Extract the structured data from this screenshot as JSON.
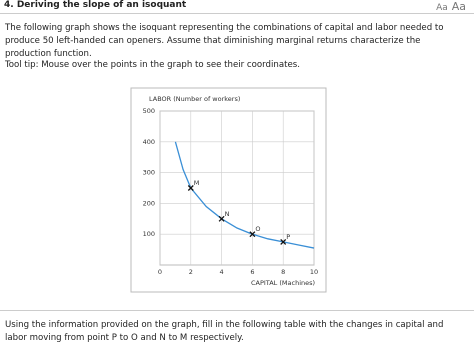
{
  "header": {
    "title": "4. Deriving the slope of an isoquant",
    "font_controls": [
      "Aa",
      "Aa"
    ]
  },
  "intro": "The following graph shows the isoquant representing the combinations of capital and labor needed to produce 50 left-handed can openers. Assume that diminishing marginal returns characterize the production function.",
  "tooltip": "Tool tip: Mouse over the points in the graph to see their coordinates.",
  "question": "Using the information provided on the graph, fill in the following table with the changes in capital and labor moving from point P to O and N to M respectively.",
  "chart_data": {
    "type": "line",
    "y_label": "LABOR (Number of workers)",
    "x_label": "CAPITAL (Machines)",
    "xlim": [
      0,
      10
    ],
    "ylim": [
      0,
      500
    ],
    "xticks": [
      0,
      2,
      4,
      6,
      8,
      10
    ],
    "yticks": [
      100,
      200,
      300,
      400,
      500
    ],
    "grid": true,
    "series": [
      {
        "color": "#3a8fd6",
        "x": [
          1,
          1.5,
          2,
          3,
          4,
          5,
          6,
          7,
          8,
          9,
          10
        ],
        "values": [
          400,
          310,
          250,
          190,
          150,
          120,
          100,
          85,
          75,
          65,
          55
        ]
      }
    ],
    "points": {
      "labels": [
        "M",
        "N",
        "O",
        "P"
      ],
      "x": [
        2,
        4,
        6,
        8
      ],
      "values": [
        250,
        150,
        100,
        75
      ],
      "color": "#111"
    }
  }
}
